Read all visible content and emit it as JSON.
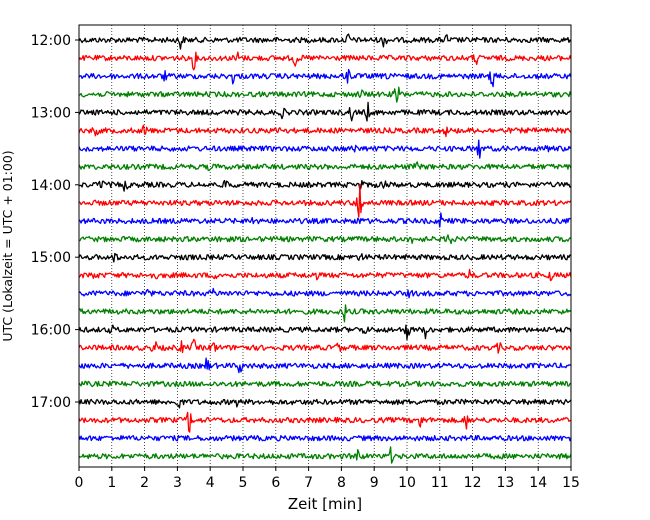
{
  "chart_data": {
    "type": "line",
    "title": "",
    "xlabel": "Zeit  [min]",
    "ylabel": "UTC (Lokalzeit = UTC + 01:00)",
    "xlim": [
      0,
      15
    ],
    "x_ticks": [
      "0",
      "1",
      "2",
      "3",
      "4",
      "5",
      "6",
      "7",
      "8",
      "9",
      "10",
      "11",
      "12",
      "13",
      "14",
      "15"
    ],
    "y_ticks": [
      "12:00",
      "13:00",
      "14:00",
      "15:00",
      "16:00",
      "17:00"
    ],
    "grid": "vertical dotted",
    "legend": "none",
    "trace_colors": [
      "#000000",
      "#ff0000",
      "#0000ff",
      "#008000"
    ],
    "series": [
      {
        "start": "12:00",
        "color": "#000000",
        "events": [
          {
            "t": 3.1,
            "amp": 10
          },
          {
            "t": 8.2,
            "amp": 5
          },
          {
            "t": 9.3,
            "amp": 6
          },
          {
            "t": 11.2,
            "amp": 4
          }
        ]
      },
      {
        "start": "12:15",
        "color": "#ff0000",
        "events": [
          {
            "t": 3.5,
            "amp": 10
          },
          {
            "t": 4.8,
            "amp": 8
          },
          {
            "t": 6.6,
            "amp": 8
          },
          {
            "t": 12.1,
            "amp": 6
          }
        ]
      },
      {
        "start": "12:30",
        "color": "#0000ff",
        "events": [
          {
            "t": 2.6,
            "amp": 4
          },
          {
            "t": 4.7,
            "amp": 6
          },
          {
            "t": 8.2,
            "amp": 8
          },
          {
            "t": 9.5,
            "amp": 11
          },
          {
            "t": 12.6,
            "amp": 14
          }
        ]
      },
      {
        "start": "12:45",
        "color": "#008000",
        "events": [
          {
            "t": 8.6,
            "amp": 4
          },
          {
            "t": 9.7,
            "amp": 16
          }
        ]
      },
      {
        "start": "13:00",
        "color": "#000000",
        "events": [
          {
            "t": 6.2,
            "amp": 4
          },
          {
            "t": 8.3,
            "amp": 7
          },
          {
            "t": 8.8,
            "amp": 8
          }
        ]
      },
      {
        "start": "13:15",
        "color": "#ff0000",
        "events": [
          {
            "t": 0.5,
            "amp": 6
          },
          {
            "t": 2.0,
            "amp": 5
          },
          {
            "t": 6.1,
            "amp": 4
          },
          {
            "t": 11.2,
            "amp": 4
          }
        ]
      },
      {
        "start": "13:30",
        "color": "#0000ff",
        "events": [
          {
            "t": 8.4,
            "amp": 3
          },
          {
            "t": 12.2,
            "amp": 9
          },
          {
            "t": 14.3,
            "amp": 4
          }
        ]
      },
      {
        "start": "13:45",
        "color": "#008000",
        "events": [
          {
            "t": 4.0,
            "amp": 3
          },
          {
            "t": 10.3,
            "amp": 3
          }
        ]
      },
      {
        "start": "14:00",
        "color": "#000000",
        "events": [
          {
            "t": 0.7,
            "amp": 6
          },
          {
            "t": 1.4,
            "amp": 6
          },
          {
            "t": 4.5,
            "amp": 5
          },
          {
            "t": 8.6,
            "amp": 6
          },
          {
            "t": 9.3,
            "amp": 6
          }
        ]
      },
      {
        "start": "14:15",
        "color": "#ff0000",
        "events": [
          {
            "t": 8.55,
            "amp": 26
          }
        ]
      },
      {
        "start": "14:30",
        "color": "#0000ff",
        "events": [
          {
            "t": 5.3,
            "amp": 4
          },
          {
            "t": 8.5,
            "amp": 5
          },
          {
            "t": 11.0,
            "amp": 8
          }
        ]
      },
      {
        "start": "14:45",
        "color": "#008000",
        "events": [
          {
            "t": 4.3,
            "amp": 3
          },
          {
            "t": 10.2,
            "amp": 4
          },
          {
            "t": 11.3,
            "amp": 10
          }
        ]
      },
      {
        "start": "15:00",
        "color": "#000000",
        "events": [
          {
            "t": 1.1,
            "amp": 4
          },
          {
            "t": 3.3,
            "amp": 3
          },
          {
            "t": 8.6,
            "amp": 3
          }
        ]
      },
      {
        "start": "15:15",
        "color": "#ff0000",
        "events": [
          {
            "t": 0.4,
            "amp": 4
          },
          {
            "t": 2.3,
            "amp": 4
          },
          {
            "t": 4.2,
            "amp": 4
          },
          {
            "t": 7.2,
            "amp": 4
          },
          {
            "t": 11.9,
            "amp": 4
          },
          {
            "t": 14.4,
            "amp": 4
          }
        ]
      },
      {
        "start": "15:30",
        "color": "#0000ff",
        "events": [
          {
            "t": 2.1,
            "amp": 3
          },
          {
            "t": 4.1,
            "amp": 4
          },
          {
            "t": 10.1,
            "amp": 3
          }
        ]
      },
      {
        "start": "15:45",
        "color": "#008000",
        "events": [
          {
            "t": 8.1,
            "amp": 8
          }
        ]
      },
      {
        "start": "16:00",
        "color": "#000000",
        "events": [
          {
            "t": 1.0,
            "amp": 3
          },
          {
            "t": 8.7,
            "amp": 4
          },
          {
            "t": 10.0,
            "amp": 9
          },
          {
            "t": 10.6,
            "amp": 10
          }
        ]
      },
      {
        "start": "16:15",
        "color": "#ff0000",
        "events": [
          {
            "t": 2.3,
            "amp": 6
          },
          {
            "t": 3.1,
            "amp": 6
          },
          {
            "t": 3.5,
            "amp": 6
          },
          {
            "t": 4.1,
            "amp": 6
          },
          {
            "t": 5.0,
            "amp": 6
          },
          {
            "t": 7.9,
            "amp": 5
          },
          {
            "t": 12.8,
            "amp": 4
          }
        ]
      },
      {
        "start": "16:30",
        "color": "#0000ff",
        "events": [
          {
            "t": 3.9,
            "amp": 7
          },
          {
            "t": 4.9,
            "amp": 7
          }
        ]
      },
      {
        "start": "16:45",
        "color": "#008000",
        "events": []
      },
      {
        "start": "17:00",
        "color": "#000000",
        "events": [
          {
            "t": 3.05,
            "amp": 7
          },
          {
            "t": 4.8,
            "amp": 3
          }
        ]
      },
      {
        "start": "17:15",
        "color": "#ff0000",
        "events": [
          {
            "t": 3.35,
            "amp": 14
          },
          {
            "t": 10.4,
            "amp": 8
          },
          {
            "t": 11.8,
            "amp": 7
          }
        ]
      },
      {
        "start": "17:30",
        "color": "#0000ff",
        "events": []
      },
      {
        "start": "17:45",
        "color": "#008000",
        "events": [
          {
            "t": 8.5,
            "amp": 8
          },
          {
            "t": 9.5,
            "amp": 7
          }
        ]
      }
    ]
  }
}
